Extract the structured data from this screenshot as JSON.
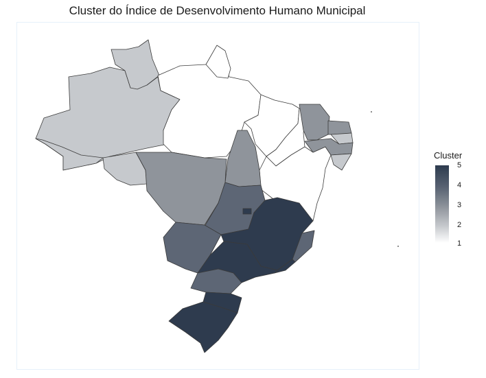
{
  "title": "Cluster do Índice de Desenvolvimento Humano Municipal",
  "legend": {
    "title": "Cluster",
    "ticks": [
      "5",
      "4",
      "3",
      "2",
      "1"
    ],
    "colors": {
      "1": "#ffffff",
      "2": "#c6c9cd",
      "3": "#8f949b",
      "4": "#5d6675",
      "5": "#2e3b4e"
    }
  },
  "states": [
    {
      "name": "AM",
      "cluster": 2
    },
    {
      "name": "RR",
      "cluster": 2
    },
    {
      "name": "AC",
      "cluster": 2
    },
    {
      "name": "RO",
      "cluster": 2
    },
    {
      "name": "PA",
      "cluster": 1
    },
    {
      "name": "AP",
      "cluster": 1
    },
    {
      "name": "MA",
      "cluster": 1
    },
    {
      "name": "PI",
      "cluster": 1
    },
    {
      "name": "BA",
      "cluster": 1
    },
    {
      "name": "AL",
      "cluster": 2
    },
    {
      "name": "PB",
      "cluster": 2
    },
    {
      "name": "CE",
      "cluster": 3
    },
    {
      "name": "RN",
      "cluster": 3
    },
    {
      "name": "PE",
      "cluster": 3
    },
    {
      "name": "SE",
      "cluster": 1
    },
    {
      "name": "MT",
      "cluster": 3
    },
    {
      "name": "TO",
      "cluster": 3
    },
    {
      "name": "GO",
      "cluster": 4
    },
    {
      "name": "MS",
      "cluster": 4
    },
    {
      "name": "PR",
      "cluster": 4
    },
    {
      "name": "ES",
      "cluster": 4
    },
    {
      "name": "MG",
      "cluster": 5
    },
    {
      "name": "SP",
      "cluster": 5
    },
    {
      "name": "RJ",
      "cluster": 5
    },
    {
      "name": "SC",
      "cluster": 5
    },
    {
      "name": "RS",
      "cluster": 5
    },
    {
      "name": "DF",
      "cluster": 5
    }
  ]
}
